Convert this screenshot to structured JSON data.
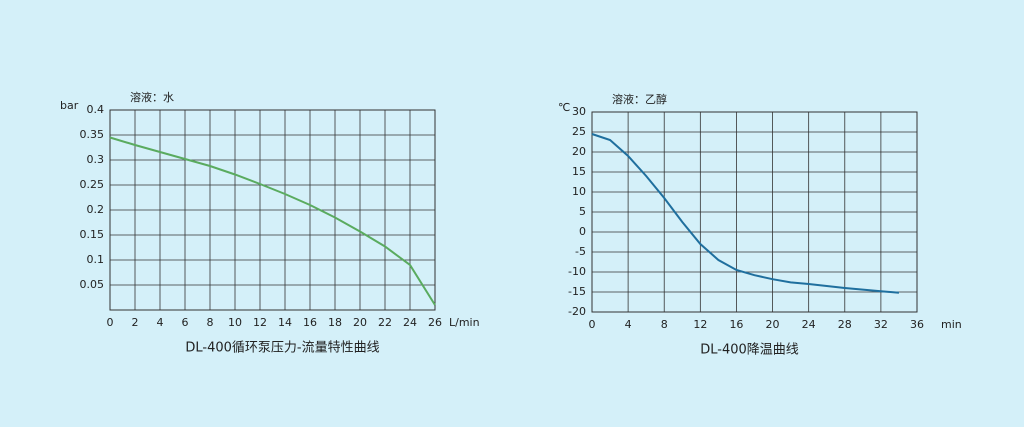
{
  "chart_data": [
    {
      "type": "line",
      "title": "DL-400循环泵压力-流量特性曲线",
      "annotation": "溶液：水",
      "y_label": "bar",
      "x_label": "L/min",
      "color": "#5aab5f",
      "x": [
        0,
        2,
        4,
        6,
        8,
        10,
        12,
        14,
        16,
        18,
        20,
        22,
        24,
        26
      ],
      "values": [
        0.345,
        0.33,
        0.316,
        0.302,
        0.288,
        0.271,
        0.252,
        0.232,
        0.21,
        0.185,
        0.157,
        0.127,
        0.09,
        0.01
      ],
      "xlim": [
        0,
        26
      ],
      "ylim": [
        0,
        0.4
      ],
      "xticks": [
        0,
        2,
        4,
        6,
        8,
        10,
        12,
        14,
        16,
        18,
        20,
        22,
        24,
        26
      ],
      "yticks": [
        0.05,
        0.1,
        0.15,
        0.2,
        0.25,
        0.3,
        0.35,
        0.4
      ],
      "grid": true
    },
    {
      "type": "line",
      "title": "DL-400降温曲线",
      "annotation": "溶液：乙醇",
      "y_label": "℃",
      "x_label": "min",
      "color": "#1f6f9e",
      "x": [
        0,
        2,
        4,
        6,
        8,
        10,
        12,
        14,
        16,
        18,
        20,
        22,
        24,
        26,
        28,
        30,
        32,
        34
      ],
      "values": [
        24.5,
        23,
        19,
        14,
        8.5,
        2.5,
        -3,
        -7,
        -9.5,
        -10.8,
        -11.8,
        -12.6,
        -13,
        -13.5,
        -14,
        -14.4,
        -14.8,
        -15.2
      ],
      "xlim": [
        0,
        36
      ],
      "ylim": [
        -20,
        30
      ],
      "xticks": [
        0,
        4,
        8,
        12,
        16,
        20,
        24,
        28,
        32,
        36
      ],
      "yticks": [
        -20,
        -15,
        -10,
        -5,
        0,
        5,
        10,
        15,
        20,
        25,
        30
      ],
      "grid": true
    }
  ]
}
